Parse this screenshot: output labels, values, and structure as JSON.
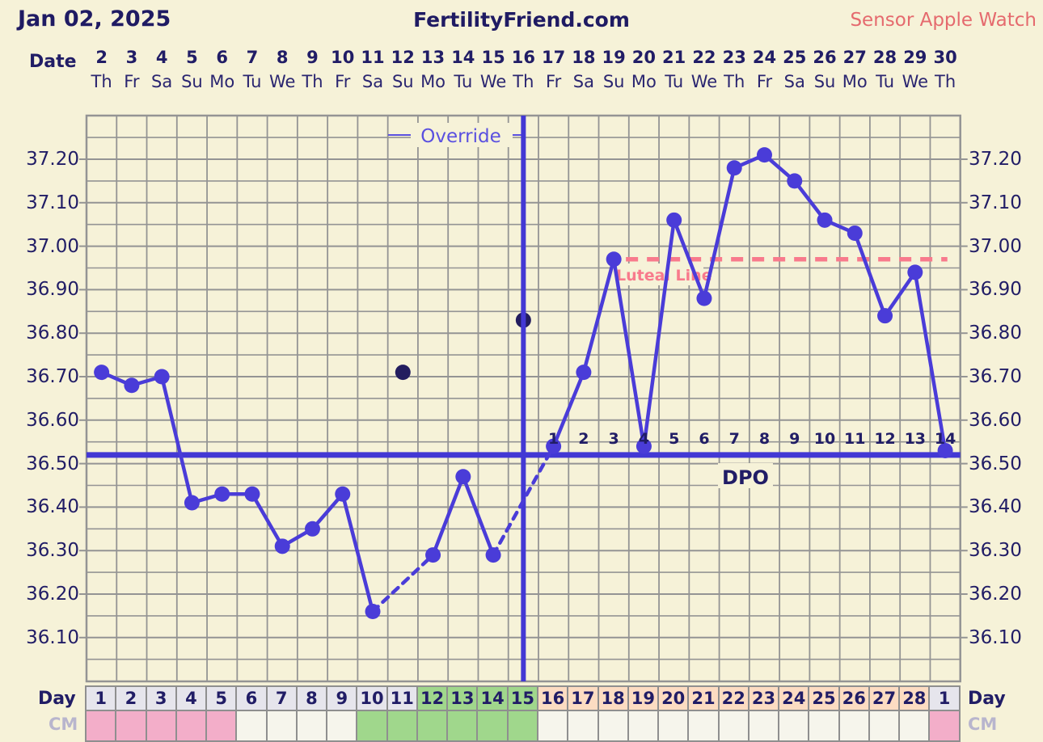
{
  "header": {
    "date": "Jan 02, 2025",
    "site": "FertilityFriend.com",
    "sensor": "Sensor Apple Watch"
  },
  "axis": {
    "date_label": "Date",
    "dates": [
      "2",
      "3",
      "4",
      "5",
      "6",
      "7",
      "8",
      "9",
      "10",
      "11",
      "12",
      "13",
      "14",
      "15",
      "16",
      "17",
      "18",
      "19",
      "20",
      "21",
      "22",
      "23",
      "24",
      "25",
      "26",
      "27",
      "28",
      "29",
      "30"
    ],
    "weekdays": [
      "Th",
      "Fr",
      "Sa",
      "Su",
      "Mo",
      "Tu",
      "We",
      "Th",
      "Fr",
      "Sa",
      "Su",
      "Mo",
      "Tu",
      "We",
      "Th",
      "Fr",
      "Sa",
      "Su",
      "Mo",
      "Tu",
      "We",
      "Th",
      "Fr",
      "Sa",
      "Su",
      "Mo",
      "Tu",
      "We",
      "Th"
    ],
    "y_ticks": [
      "37.20",
      "37.10",
      "37.00",
      "36.90",
      "36.80",
      "36.70",
      "36.60",
      "36.50",
      "36.40",
      "36.30",
      "36.20",
      "36.10"
    ]
  },
  "chart_data": {
    "type": "line",
    "title": "FertilityFriend.com",
    "subtitle": "Jan 02, 2025",
    "sensor": "Sensor Apple Watch",
    "x_dates": [
      2,
      3,
      4,
      5,
      6,
      7,
      8,
      9,
      10,
      11,
      12,
      13,
      14,
      15,
      16,
      17,
      18,
      19,
      20,
      21,
      22,
      23,
      24,
      25,
      26,
      27,
      28,
      29,
      30
    ],
    "temps": [
      {
        "date": 2,
        "temp": 36.71
      },
      {
        "date": 3,
        "temp": 36.68
      },
      {
        "date": 4,
        "temp": 36.7
      },
      {
        "date": 5,
        "temp": 36.41
      },
      {
        "date": 6,
        "temp": 36.43
      },
      {
        "date": 7,
        "temp": 36.43
      },
      {
        "date": 8,
        "temp": 36.31
      },
      {
        "date": 9,
        "temp": 36.35
      },
      {
        "date": 10,
        "temp": 36.43
      },
      {
        "date": 11,
        "temp": 36.16
      },
      {
        "date": 13,
        "temp": 36.29
      },
      {
        "date": 14,
        "temp": 36.47
      },
      {
        "date": 15,
        "temp": 36.29
      },
      {
        "date": 17,
        "temp": 36.54
      },
      {
        "date": 18,
        "temp": 36.71
      },
      {
        "date": 19,
        "temp": 36.97
      },
      {
        "date": 20,
        "temp": 36.54
      },
      {
        "date": 21,
        "temp": 37.06
      },
      {
        "date": 22,
        "temp": 36.88
      },
      {
        "date": 23,
        "temp": 37.18
      },
      {
        "date": 24,
        "temp": 37.21
      },
      {
        "date": 25,
        "temp": 37.15
      },
      {
        "date": 26,
        "temp": 37.06
      },
      {
        "date": 27,
        "temp": 37.03
      },
      {
        "date": 28,
        "temp": 36.84
      },
      {
        "date": 29,
        "temp": 36.94
      },
      {
        "date": 30,
        "temp": 36.53
      }
    ],
    "discarded_temps": [
      {
        "date": 12,
        "temp": 36.71
      },
      {
        "date": 16,
        "temp": 36.83
      }
    ],
    "coverline_temp": 36.52,
    "luteal_line_temp": 36.97,
    "luteal_line_start_after_date": 19,
    "ovulation_line_date": 16,
    "dpo_start_date": 17,
    "ylim": [
      36.0,
      37.3
    ],
    "y_major_step": 0.1,
    "y_grid_step": 0.05,
    "grid": true,
    "legend_position": "none"
  },
  "annotations": {
    "override_label": "Override",
    "luteal_label": "Luteal Line",
    "dpo_label": "DPO",
    "dpo_numbers": [
      "1",
      "2",
      "3",
      "4",
      "5",
      "6",
      "7",
      "8",
      "9",
      "10",
      "11",
      "12",
      "13",
      "14"
    ]
  },
  "bottom": {
    "day_label": "Day",
    "cm_label": "CM",
    "day_cells": [
      {
        "label": "1",
        "phase": "plain"
      },
      {
        "label": "2",
        "phase": "plain"
      },
      {
        "label": "3",
        "phase": "plain"
      },
      {
        "label": "4",
        "phase": "plain"
      },
      {
        "label": "5",
        "phase": "plain"
      },
      {
        "label": "6",
        "phase": "plain"
      },
      {
        "label": "7",
        "phase": "plain"
      },
      {
        "label": "8",
        "phase": "plain"
      },
      {
        "label": "9",
        "phase": "plain"
      },
      {
        "label": "10",
        "phase": "plain"
      },
      {
        "label": "11",
        "phase": "plain"
      },
      {
        "label": "12",
        "phase": "fertile"
      },
      {
        "label": "13",
        "phase": "fertile"
      },
      {
        "label": "14",
        "phase": "fertile"
      },
      {
        "label": "15",
        "phase": "fertile"
      },
      {
        "label": "16",
        "phase": "luteal"
      },
      {
        "label": "17",
        "phase": "luteal"
      },
      {
        "label": "18",
        "phase": "luteal"
      },
      {
        "label": "19",
        "phase": "luteal"
      },
      {
        "label": "20",
        "phase": "luteal"
      },
      {
        "label": "21",
        "phase": "luteal"
      },
      {
        "label": "22",
        "phase": "luteal"
      },
      {
        "label": "23",
        "phase": "luteal"
      },
      {
        "label": "24",
        "phase": "luteal"
      },
      {
        "label": "25",
        "phase": "luteal"
      },
      {
        "label": "26",
        "phase": "luteal"
      },
      {
        "label": "27",
        "phase": "luteal"
      },
      {
        "label": "28",
        "phase": "luteal"
      },
      {
        "label": "1",
        "phase": "plain"
      }
    ],
    "cm_cells": [
      {
        "phase": "menses"
      },
      {
        "phase": "menses"
      },
      {
        "phase": "menses"
      },
      {
        "phase": "menses"
      },
      {
        "phase": "menses"
      },
      {
        "phase": "none"
      },
      {
        "phase": "none"
      },
      {
        "phase": "none"
      },
      {
        "phase": "none"
      },
      {
        "phase": "fertile"
      },
      {
        "phase": "fertile"
      },
      {
        "phase": "fertile"
      },
      {
        "phase": "fertile"
      },
      {
        "phase": "fertile"
      },
      {
        "phase": "fertile"
      },
      {
        "phase": "none"
      },
      {
        "phase": "none"
      },
      {
        "phase": "none"
      },
      {
        "phase": "none"
      },
      {
        "phase": "none"
      },
      {
        "phase": "none"
      },
      {
        "phase": "none"
      },
      {
        "phase": "none"
      },
      {
        "phase": "none"
      },
      {
        "phase": "none"
      },
      {
        "phase": "none"
      },
      {
        "phase": "none"
      },
      {
        "phase": "none"
      },
      {
        "phase": "menses"
      }
    ]
  },
  "colors": {
    "background": "#f6f2d8",
    "grid": "#949494",
    "line": "#4a3cd8",
    "discarded_point": "#231d5f",
    "coverline": "#4338d4",
    "ovulation_line": "#4338d4",
    "override_text": "#5a50e0",
    "luteal_line": "#f87a8c",
    "navy_text": "#211d66",
    "sensor_text": "#e56a6e",
    "day_plain": "#e6e5ec",
    "day_fertile": "#a0d78c",
    "day_luteal": "#fcdcc2",
    "cm_menses": "#f3aec9",
    "cm_none": "#f6f5ec",
    "cm_label": "#b8b5cd"
  }
}
